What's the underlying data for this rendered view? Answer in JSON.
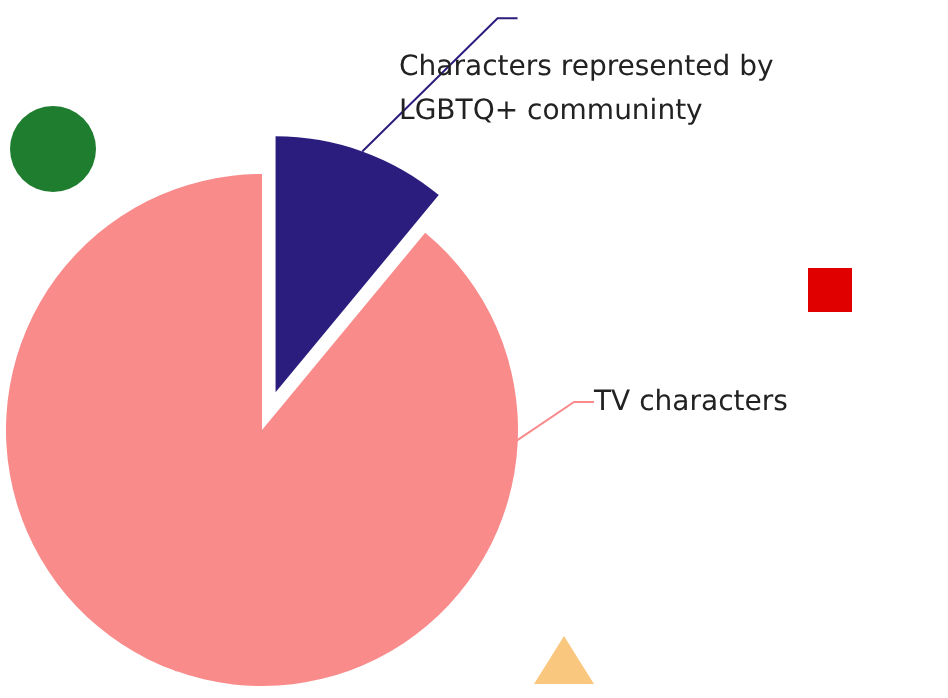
{
  "chart_data": {
    "type": "pie",
    "categories": [
      "Characters represented by LGBTQ+ communinty",
      "TV characters"
    ],
    "values": [
      11,
      89
    ],
    "colors": [
      "#2b1d7e",
      "#f98b8b"
    ],
    "legend": false
  }
}
